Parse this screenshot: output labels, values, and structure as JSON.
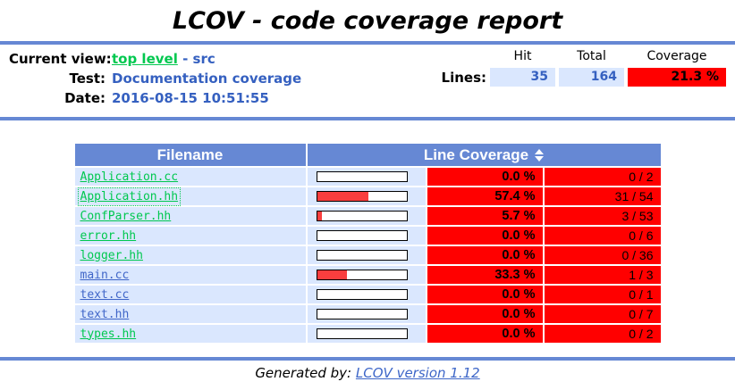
{
  "title": "LCOV - code coverage report",
  "header": {
    "current_view_label": "Current view:",
    "current_view_link": "top level",
    "current_view_rest": "- src",
    "test_label": "Test:",
    "test_value": "Documentation coverage",
    "date_label": "Date:",
    "date_value": "2016-08-15 10:51:55",
    "stats": {
      "col_hit": "Hit",
      "col_total": "Total",
      "col_coverage": "Coverage",
      "lines_label": "Lines:",
      "lines_hit": "35",
      "lines_total": "164",
      "lines_coverage": "21.3 %"
    }
  },
  "table": {
    "filename_header": "Filename",
    "coverage_header": "Line Coverage",
    "rows": [
      {
        "name": "Application.cc",
        "percent": "0.0 %",
        "percent_value": 0,
        "ratio": "0 / 2",
        "visited": false,
        "focused": false
      },
      {
        "name": "Application.hh",
        "percent": "57.4 %",
        "percent_value": 57.4,
        "ratio": "31 / 54",
        "visited": false,
        "focused": true
      },
      {
        "name": "ConfParser.hh",
        "percent": "5.7 %",
        "percent_value": 5.7,
        "ratio": "3 / 53",
        "visited": false,
        "focused": false
      },
      {
        "name": "error.hh",
        "percent": "0.0 %",
        "percent_value": 0,
        "ratio": "0 / 6",
        "visited": false,
        "focused": false
      },
      {
        "name": "logger.hh",
        "percent": "0.0 %",
        "percent_value": 0,
        "ratio": "0 / 36",
        "visited": false,
        "focused": false
      },
      {
        "name": "main.cc",
        "percent": "33.3 %",
        "percent_value": 33.3,
        "ratio": "1 / 3",
        "visited": true,
        "focused": false
      },
      {
        "name": "text.cc",
        "percent": "0.0 %",
        "percent_value": 0,
        "ratio": "0 / 1",
        "visited": true,
        "focused": false
      },
      {
        "name": "text.hh",
        "percent": "0.0 %",
        "percent_value": 0,
        "ratio": "0 / 7",
        "visited": true,
        "focused": false
      },
      {
        "name": "types.hh",
        "percent": "0.0 %",
        "percent_value": 0,
        "ratio": "0 / 2",
        "visited": false,
        "focused": false
      }
    ]
  },
  "footer": {
    "generated_by_label": "Generated by:",
    "link_text": "LCOV version 1.12"
  },
  "colors": {
    "accent_blue": "#6688D4",
    "cell_light_blue": "#DAE7FE",
    "low_coverage_red": "#FF0000",
    "bar_fill_red": "#FA3E3E",
    "link_green": "#00C84F",
    "link_visited_blue": "#4066C8",
    "value_blue": "#3560C0"
  }
}
